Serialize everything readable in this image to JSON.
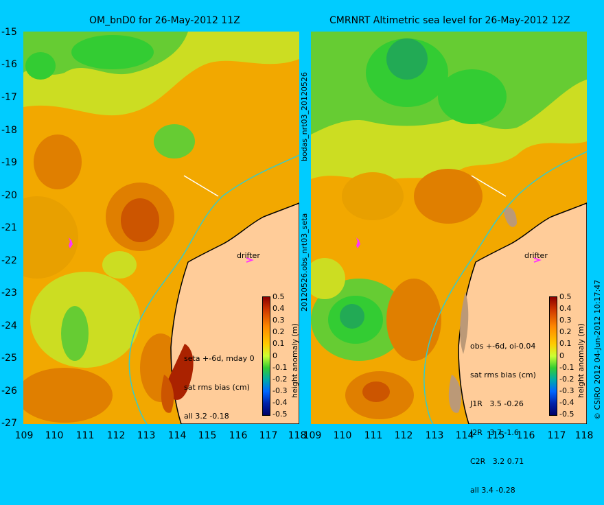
{
  "left_title": "OM_bnD0 for 26-May-2012 11Z",
  "right_title": "CMRNRT Altimetric sea level  for 26-May-2012 12Z",
  "y_ticks": [
    "-15",
    "-16",
    "-17",
    "-18",
    "-19",
    "-20",
    "-21",
    "-22",
    "-23",
    "-24",
    "-25",
    "-26",
    "-27"
  ],
  "x_ticks_left": [
    "109",
    "110",
    "111",
    "112",
    "113",
    "114",
    "115",
    "116",
    "117",
    "118"
  ],
  "x_ticks_right": [
    "109",
    "110",
    "111",
    "112",
    "113",
    "114",
    "115",
    "116",
    "117",
    "118"
  ],
  "mid_label_top": "bodas_nrt03_20120526",
  "mid_label_bottom": "20120526.obs_nrt03_seta",
  "right_margin_label": "© CSIRO 2012   04-Jun-2012 10:17:47",
  "drifter_label": "drifter",
  "colorbar_ticks": [
    "0.5",
    "0.4",
    "0.3",
    "0.2",
    "0.1",
    "0",
    "-0.1",
    "-0.2",
    "-0.3",
    "-0.4",
    "-0.5"
  ],
  "colorbar_title": "height anomaly (m)",
  "left_stats": [
    "seta +-6d, mday 0",
    "sat rms bias (cm)",
    "all 3.2 -0.18"
  ],
  "right_stats": [
    "obs +-6d, oi-0.04",
    "sat rms bias (cm)",
    "J1R   3.5 -0.26",
    "J2R   3.7 -1.6",
    "C2R   3.2 0.71",
    "all 3.4 -0.28"
  ],
  "colors": {
    "background": "#00ccff",
    "land": "#ffcc99",
    "coastline_contour": "#33cccc",
    "drifter": "#ff33ff"
  }
}
